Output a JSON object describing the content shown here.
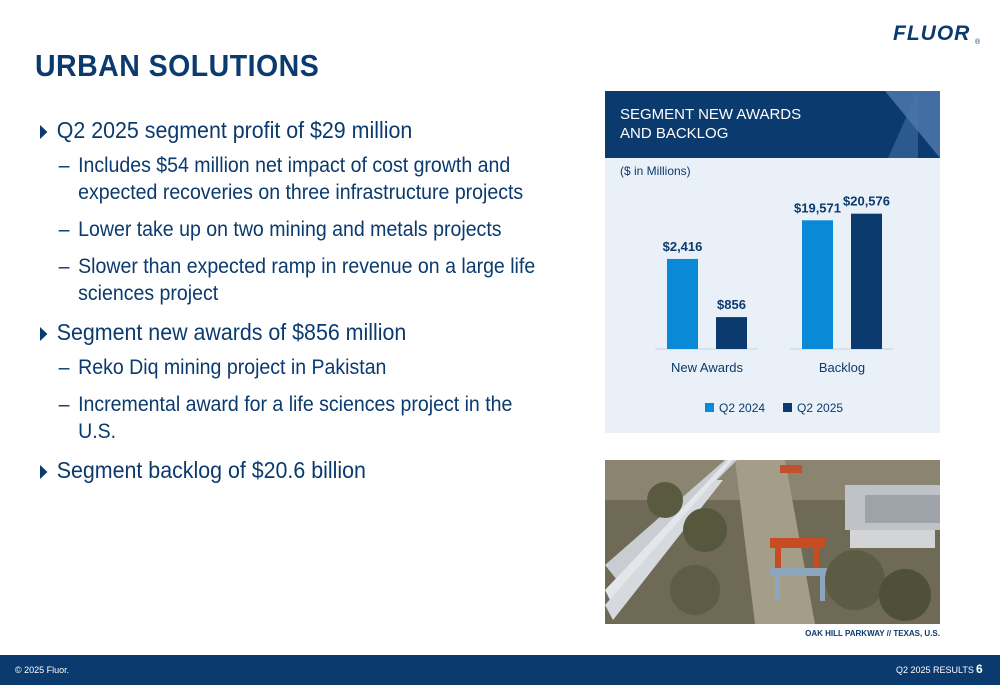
{
  "slide": {
    "title": "URBAN SOLUTIONS",
    "logo_text": "FLUOR",
    "logo_mark": "®"
  },
  "bullets": [
    {
      "text": "Q2 2025 segment profit of $29 million",
      "subs": [
        "Includes $54 million net impact of cost growth and expected recoveries on three infrastructure projects",
        "Lower take up on two mining and metals projects",
        "Slower than expected ramp in revenue on a large life sciences project"
      ]
    },
    {
      "text": "Segment new awards of $856 million",
      "subs": [
        "Reko Diq mining project in Pakistan",
        "Incremental award for a life sciences project in the U.S."
      ]
    },
    {
      "text": "Segment backlog of $20.6 billion",
      "subs": []
    }
  ],
  "panel": {
    "title_line1": "SEGMENT NEW AWARDS",
    "title_line2": "AND BACKLOG",
    "units": "($ in Millions)"
  },
  "chart_data": {
    "type": "bar",
    "categories": [
      "New Awards",
      "Backlog"
    ],
    "series": [
      {
        "name": "Q2 2024",
        "color": "#0a8ad6",
        "values": [
          2416,
          19571
        ],
        "labels": [
          "$2,416",
          "$19,571"
        ]
      },
      {
        "name": "Q2 2025",
        "color": "#0b3a6e",
        "values": [
          856,
          20576
        ],
        "labels": [
          "$856",
          "$20,576"
        ]
      }
    ],
    "scale_note": "New Awards and Backlog groups are drawn on separate scales"
  },
  "photo": {
    "caption": "OAK HILL PARKWAY // TEXAS, U.S."
  },
  "footer": {
    "copyright": "© 2025 Fluor.",
    "report": "Q2 2025 RESULTS",
    "page_number": "6"
  },
  "colors": {
    "navy": "#0b3a6e",
    "accent_blue": "#0a8ad6",
    "panel_bg": "#eaf0f8"
  }
}
